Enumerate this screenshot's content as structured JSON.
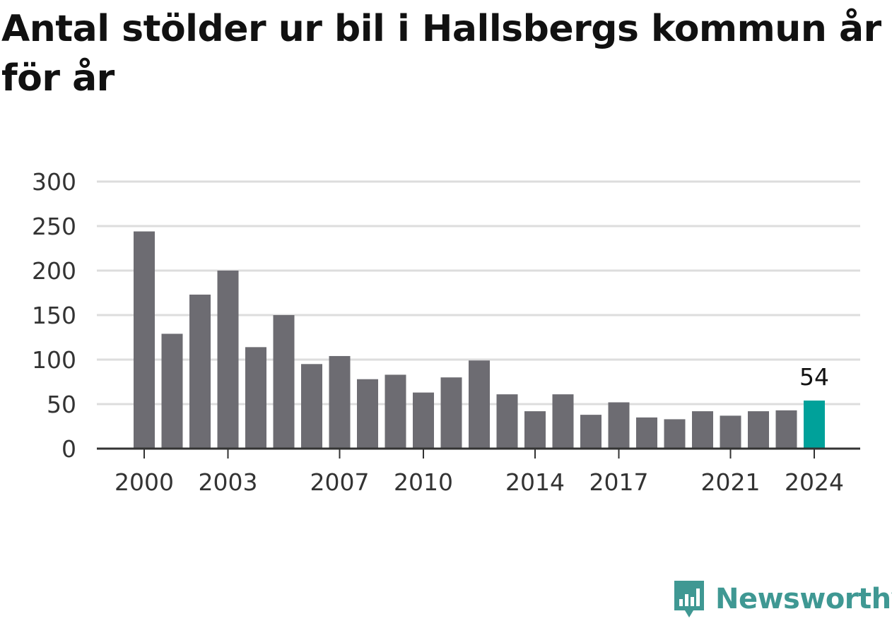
{
  "title": "Antal stölder ur bil i Hallsbergs kommun år för år",
  "colors": {
    "bar": "#6d6c72",
    "highlight": "#00a19a",
    "grid": "#dddddd",
    "axis": "#333333",
    "brand": "#3f9893"
  },
  "brand": {
    "name": "Newsworthy",
    "logo_icon": "chart-speech-bubble-icon"
  },
  "chart_data": {
    "type": "bar",
    "title": "Antal stölder ur bil i Hallsbergs kommun år för år",
    "xlabel": "",
    "ylabel": "",
    "categories": [
      2000,
      2001,
      2002,
      2003,
      2004,
      2005,
      2006,
      2007,
      2008,
      2009,
      2010,
      2011,
      2012,
      2013,
      2014,
      2015,
      2016,
      2017,
      2018,
      2019,
      2020,
      2021,
      2022,
      2023,
      2024
    ],
    "values": [
      244,
      129,
      173,
      200,
      114,
      150,
      95,
      104,
      78,
      83,
      63,
      80,
      99,
      61,
      42,
      61,
      38,
      52,
      35,
      33,
      42,
      37,
      42,
      43,
      54
    ],
    "x_tick_labels": [
      2000,
      2003,
      2007,
      2010,
      2014,
      2017,
      2021,
      2024
    ],
    "y_ticks": [
      0,
      50,
      100,
      150,
      200,
      250,
      300
    ],
    "ylim": [
      0,
      300
    ],
    "grid": true,
    "highlight": {
      "category": 2024,
      "label": "54"
    }
  }
}
